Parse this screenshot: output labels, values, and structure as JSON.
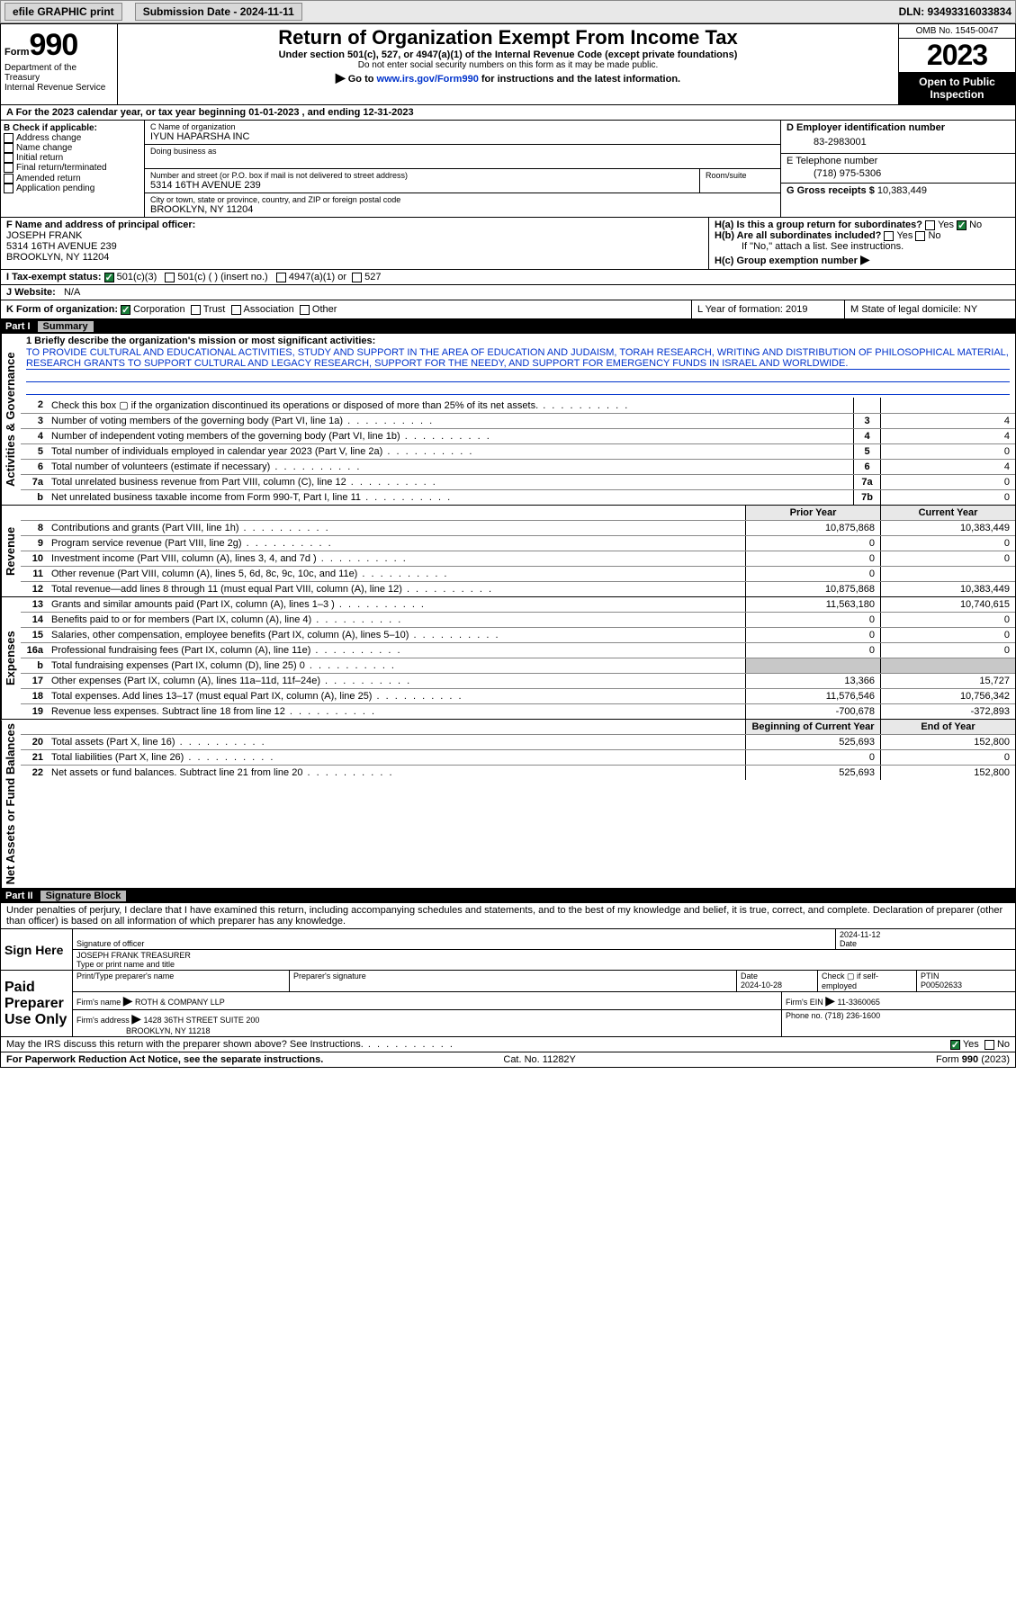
{
  "topbar": {
    "efile": "efile GRAPHIC print",
    "sub_label": "Submission Date - 2024-11-11",
    "dln": "DLN: 93493316033834"
  },
  "header": {
    "form": "Form",
    "n990": "990",
    "title": "Return of Organization Exempt From Income Tax",
    "sub": "Under section 501(c), 527, or 4947(a)(1) of the Internal Revenue Code (except private foundations)",
    "warn": "Do not enter social security numbers on this form as it may be made public.",
    "goto": "Go to www.irs.gov/Form990 for instructions and the latest information.",
    "goto_pre": "Go to ",
    "goto_link": "www.irs.gov/Form990",
    "goto_post": " for instructions and the latest information.",
    "omb": "OMB No. 1545-0047",
    "year": "2023",
    "open": "Open to Public Inspection",
    "dept": "Department of the Treasury",
    "irs": "Internal Revenue Service"
  },
  "rowA": "A For the 2023 calendar year, or tax year beginning 01-01-2023   , and ending 12-31-2023",
  "B": {
    "label": "B Check if applicable:",
    "items": [
      "Address change",
      "Name change",
      "Initial return",
      "Final return/terminated",
      "Amended return",
      "Application pending"
    ]
  },
  "C": {
    "name_lbl": "C Name of organization",
    "name": "IYUN HAPARSHA INC",
    "dba_lbl": "Doing business as",
    "addr_lbl": "Number and street (or P.O. box if mail is not delivered to street address)",
    "room_lbl": "Room/suite",
    "addr": "5314 16TH AVENUE 239",
    "city_lbl": "City or town, state or province, country, and ZIP or foreign postal code",
    "city": "BROOKLYN, NY  11204"
  },
  "D": {
    "lbl": "D Employer identification number",
    "val": "83-2983001"
  },
  "E": {
    "lbl": "E Telephone number",
    "val": "(718) 975-5306"
  },
  "G": {
    "lbl": "G Gross receipts $",
    "val": "10,383,449"
  },
  "F": {
    "lbl": "F  Name and address of principal officer:",
    "l1": "JOSEPH FRANK",
    "l2": "5314 16TH AVENUE 239",
    "l3": "BROOKLYN, NY  11204"
  },
  "H": {
    "a": "H(a)  Is this a group return for subordinates?",
    "b": "H(b)  Are all subordinates included?",
    "note": "If \"No,\" attach a list. See instructions.",
    "c": "H(c)  Group exemption number",
    "yes": "Yes",
    "no": "No"
  },
  "I": {
    "lbl": "I   Tax-exempt status:",
    "o1": "501(c)(3)",
    "o2": "501(c) (  ) (insert no.)",
    "o3": "4947(a)(1) or",
    "o4": "527"
  },
  "J": {
    "lbl": "J   Website:",
    "val": "N/A"
  },
  "K": {
    "lbl": "K Form of organization:",
    "o1": "Corporation",
    "o2": "Trust",
    "o3": "Association",
    "o4": "Other"
  },
  "L": {
    "lbl": "L Year of formation: 2019"
  },
  "M": {
    "lbl": "M State of legal domicile: NY"
  },
  "part1": {
    "num": "Part I",
    "title": "Summary"
  },
  "mission": {
    "lbl": "1   Briefly describe the organization's mission or most significant activities:",
    "text": "TO PROVIDE CULTURAL AND EDUCATIONAL ACTIVITIES, STUDY AND SUPPORT IN THE AREA OF EDUCATION AND JUDAISM, TORAH RESEARCH, WRITING AND DISTRIBUTION OF PHILOSOPHICAL MATERIAL, RESEARCH GRANTS TO SUPPORT CULTURAL AND LEGACY RESEARCH, SUPPORT FOR THE NEEDY, AND SUPPORT FOR EMERGENCY FUNDS IN ISRAEL AND WORLDWIDE."
  },
  "lines_gov": [
    {
      "n": "2",
      "t": "Check this box ▢ if the organization discontinued its operations or disposed of more than 25% of its net assets.",
      "b": "",
      "v": ""
    },
    {
      "n": "3",
      "t": "Number of voting members of the governing body (Part VI, line 1a)",
      "b": "3",
      "v": "4"
    },
    {
      "n": "4",
      "t": "Number of independent voting members of the governing body (Part VI, line 1b)",
      "b": "4",
      "v": "4"
    },
    {
      "n": "5",
      "t": "Total number of individuals employed in calendar year 2023 (Part V, line 2a)",
      "b": "5",
      "v": "0"
    },
    {
      "n": "6",
      "t": "Total number of volunteers (estimate if necessary)",
      "b": "6",
      "v": "4"
    },
    {
      "n": "7a",
      "t": "Total unrelated business revenue from Part VIII, column (C), line 12",
      "b": "7a",
      "v": "0"
    },
    {
      "n": "b",
      "t": "Net unrelated business taxable income from Form 990-T, Part I, line 11",
      "b": "7b",
      "v": "0"
    }
  ],
  "col_hdr": {
    "prior": "Prior Year",
    "current": "Current Year"
  },
  "lines_rev": [
    {
      "n": "8",
      "t": "Contributions and grants (Part VIII, line 1h)",
      "p": "10,875,868",
      "c": "10,383,449"
    },
    {
      "n": "9",
      "t": "Program service revenue (Part VIII, line 2g)",
      "p": "0",
      "c": "0"
    },
    {
      "n": "10",
      "t": "Investment income (Part VIII, column (A), lines 3, 4, and 7d )",
      "p": "0",
      "c": "0"
    },
    {
      "n": "11",
      "t": "Other revenue (Part VIII, column (A), lines 5, 6d, 8c, 9c, 10c, and 11e)",
      "p": "0",
      "c": ""
    },
    {
      "n": "12",
      "t": "Total revenue—add lines 8 through 11 (must equal Part VIII, column (A), line 12)",
      "p": "10,875,868",
      "c": "10,383,449"
    }
  ],
  "lines_exp": [
    {
      "n": "13",
      "t": "Grants and similar amounts paid (Part IX, column (A), lines 1–3 )",
      "p": "11,563,180",
      "c": "10,740,615"
    },
    {
      "n": "14",
      "t": "Benefits paid to or for members (Part IX, column (A), line 4)",
      "p": "0",
      "c": "0"
    },
    {
      "n": "15",
      "t": "Salaries, other compensation, employee benefits (Part IX, column (A), lines 5–10)",
      "p": "0",
      "c": "0"
    },
    {
      "n": "16a",
      "t": "Professional fundraising fees (Part IX, column (A), line 11e)",
      "p": "0",
      "c": "0"
    },
    {
      "n": "b",
      "t": "Total fundraising expenses (Part IX, column (D), line 25) 0",
      "p": "",
      "c": "",
      "shade": true
    },
    {
      "n": "17",
      "t": "Other expenses (Part IX, column (A), lines 11a–11d, 11f–24e)",
      "p": "13,366",
      "c": "15,727"
    },
    {
      "n": "18",
      "t": "Total expenses. Add lines 13–17 (must equal Part IX, column (A), line 25)",
      "p": "11,576,546",
      "c": "10,756,342"
    },
    {
      "n": "19",
      "t": "Revenue less expenses. Subtract line 18 from line 12",
      "p": "-700,678",
      "c": "-372,893"
    }
  ],
  "col_hdr2": {
    "prior": "Beginning of Current Year",
    "current": "End of Year"
  },
  "lines_net": [
    {
      "n": "20",
      "t": "Total assets (Part X, line 16)",
      "p": "525,693",
      "c": "152,800"
    },
    {
      "n": "21",
      "t": "Total liabilities (Part X, line 26)",
      "p": "0",
      "c": "0"
    },
    {
      "n": "22",
      "t": "Net assets or fund balances. Subtract line 21 from line 20",
      "p": "525,693",
      "c": "152,800"
    }
  ],
  "sidebar": {
    "gov": "Activities & Governance",
    "rev": "Revenue",
    "exp": "Expenses",
    "net": "Net Assets or Fund Balances"
  },
  "part2": {
    "num": "Part II",
    "title": "Signature Block"
  },
  "perjury": "Under penalties of perjury, I declare that I have examined this return, including accompanying schedules and statements, and to the best of my knowledge and belief, it is true, correct, and complete. Declaration of preparer (other than officer) is based on all information of which preparer has any knowledge.",
  "sign": {
    "here": "Sign Here",
    "sig_lbl": "Signature of officer",
    "name": "JOSEPH FRANK  TREASURER",
    "name_lbl": "Type or print name and title",
    "date_lbl": "Date",
    "date": "2024-11-12"
  },
  "paid": {
    "title": "Paid Preparer Use Only",
    "ptname_lbl": "Print/Type preparer's name",
    "psig_lbl": "Preparer's signature",
    "date_lbl": "Date",
    "date": "2024-10-28",
    "chk_lbl": "Check ▢ if self-employed",
    "ptin_lbl": "PTIN",
    "ptin": "P00502633",
    "firm_lbl": "Firm's name",
    "firm": "ROTH & COMPANY LLP",
    "ein_lbl": "Firm's EIN",
    "ein": "11-3360065",
    "addr_lbl": "Firm's address",
    "addr1": "1428 36TH STREET SUITE 200",
    "addr2": "BROOKLYN, NY  11218",
    "phone_lbl": "Phone no.",
    "phone": "(718) 236-1600"
  },
  "discuss": "May the IRS discuss this return with the preparer shown above? See Instructions.",
  "footer": {
    "l": "For Paperwork Reduction Act Notice, see the separate instructions.",
    "c": "Cat. No. 11282Y",
    "r": "Form 990 (2023)"
  }
}
